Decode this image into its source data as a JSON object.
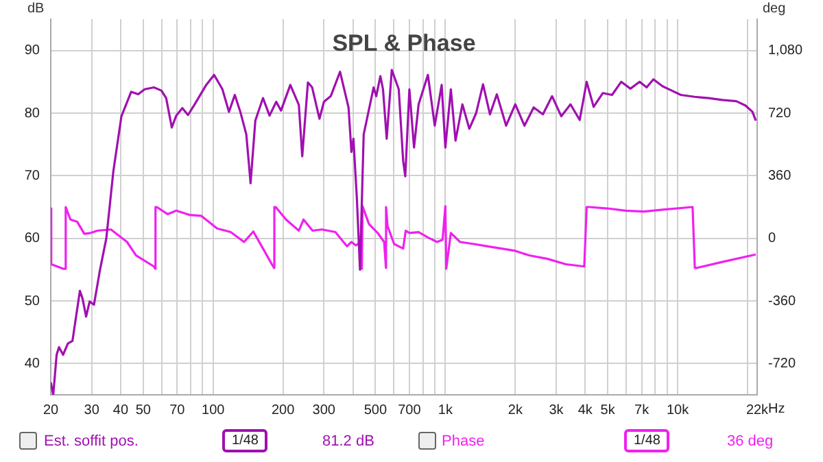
{
  "chart_data": {
    "type": "line",
    "title": "SPL & Phase",
    "ylabel": "dB",
    "y2label": "deg",
    "xlim": [
      20,
      22000
    ],
    "ylim": [
      35,
      95
    ],
    "y2lim": [
      -900,
      1260
    ],
    "log": "x",
    "grid": true,
    "legend": "bottom",
    "xticks": [
      20,
      30,
      40,
      50,
      {
        "value": 60,
        "label": null
      },
      70,
      {
        "value": 80,
        "label": null
      },
      {
        "value": 90,
        "label": null
      },
      100,
      200,
      300,
      {
        "value": 400,
        "label": null
      },
      500,
      {
        "value": 600,
        "label": null
      },
      700,
      {
        "value": 800,
        "label": null
      },
      {
        "value": 900,
        "label": null
      },
      {
        "value": 1000,
        "label": "1k"
      },
      {
        "value": 2000,
        "label": "2k"
      },
      {
        "value": 3000,
        "label": "3k"
      },
      {
        "value": 4000,
        "label": "4k"
      },
      {
        "value": 5000,
        "label": "5k"
      },
      {
        "value": 6000,
        "label": null
      },
      {
        "value": 7000,
        "label": "7k"
      },
      {
        "value": 8000,
        "label": null
      },
      {
        "value": 9000,
        "label": null
      },
      {
        "value": 10000,
        "label": "10k"
      },
      {
        "value": 20000,
        "label": null
      },
      {
        "value": 22000,
        "label": "22k"
      }
    ],
    "xlabel": "Hz",
    "yticks": [
      40,
      50,
      60,
      70,
      80,
      90
    ],
    "y2ticks": [
      {
        "value": -720,
        "label": "-720"
      },
      -360,
      0,
      360,
      720,
      {
        "value": 1080,
        "label": "1,080"
      }
    ],
    "annotations": [
      "1/48",
      "81.2 dB",
      "1/48",
      "36 deg"
    ],
    "series": [
      {
        "name": "Est. soffit pos.",
        "color": "#a010b0",
        "x": [
          20,
          20.5,
          21.2,
          21.7,
          22.6,
          23.7,
          24.8,
          25.8,
          26.7,
          27.4,
          28.4,
          29.4,
          30.7,
          32.6,
          34.7,
          37.2,
          40.3,
          44.4,
          47.6,
          50.7,
          55.6,
          59.9,
          62.8,
          66.4,
          69.4,
          73.7,
          78,
          83,
          93.4,
          101,
          109.7,
          117,
          124,
          131,
          139,
          145,
          152,
          164,
          175,
          187,
          196,
          215,
          234,
          242,
          256,
          267,
          287,
          300,
          321,
          352,
          383,
          394,
          402,
          416,
          429,
          445,
          469,
          491,
          504,
          525,
          539,
          559,
          588,
          630,
          658,
          672,
          700,
          733,
          767,
          841,
          900,
          964,
          1000,
          1056,
          1106,
          1184,
          1268,
          1357,
          1453,
          1556,
          1666,
          1826,
          2000,
          2191,
          2400,
          2630,
          2881,
          3156,
          3458,
          3788,
          4059,
          4348,
          4762,
          5218,
          5716,
          6262,
          6862,
          7355,
          7865,
          8605,
          9428,
          10330,
          11850,
          13600,
          15600,
          17900,
          19600,
          21000,
          21700
        ],
        "values": [
          37,
          35,
          41.4,
          42.6,
          41.4,
          43.2,
          43.6,
          47.9,
          51.6,
          50.4,
          47.5,
          49.9,
          49.4,
          55,
          60,
          70.7,
          79.5,
          83.4,
          83,
          83.8,
          84.1,
          83.6,
          82.4,
          77.7,
          79.6,
          80.8,
          79.7,
          81.3,
          84.5,
          86.1,
          83.8,
          80.2,
          82.9,
          80.2,
          76.6,
          68.8,
          78.8,
          82.4,
          79.6,
          81.8,
          80.4,
          84.5,
          81.3,
          73.1,
          84.9,
          84.1,
          79.1,
          81.8,
          82.7,
          86.6,
          80.9,
          73.8,
          75.9,
          66.3,
          55,
          76.6,
          80.6,
          84.1,
          82.7,
          85.9,
          83.8,
          75.9,
          86.9,
          83.8,
          72.4,
          69.9,
          83.8,
          74.5,
          81.4,
          86.1,
          78,
          84.5,
          74.5,
          83.8,
          75.6,
          81.4,
          77.5,
          80,
          84.6,
          79.8,
          83,
          78,
          81.4,
          78,
          80.9,
          79.8,
          82.7,
          79.5,
          81.4,
          78.9,
          85,
          81,
          83.2,
          82.9,
          85,
          83.9,
          85,
          84.1,
          85.4,
          84.3,
          83.6,
          82.9,
          82.6,
          82.4,
          82.1,
          81.9,
          81.2,
          80.2,
          78.8
        ]
      },
      {
        "name": "Phase",
        "color": "#f020f0",
        "axis": "y2",
        "x": [
          20,
          20.1,
          22.6,
          23.1,
          23.2,
          24.3,
          26,
          27.9,
          29.7,
          31.8,
          36.3,
          42.6,
          46.6,
          55.6,
          56.4,
          56.5,
          57.2,
          63.7,
          69.4,
          79.6,
          89,
          104,
          119,
          136,
          149,
          164,
          179,
          183,
          183.5,
          186,
          206,
          234,
          245,
          268,
          294,
          336,
          377,
          394,
          412,
          431,
          437,
          440,
          469,
          511,
          545,
          555,
          555.5,
          564,
          602,
          658,
          675,
          700,
          767,
          841,
          921,
          973,
          1000,
          1009,
          1056,
          1157,
          1327,
          1521,
          1744,
          2000,
          2292,
          2753,
          3301,
          3963,
          4058,
          4148,
          4982,
          5979,
          7175,
          8616,
          11600,
          11860,
          12130,
          15570,
          21700
        ],
        "values": [
          172,
          -149,
          -175,
          -175,
          180,
          108,
          95,
          26,
          31,
          44,
          51,
          -21,
          -98,
          -162,
          -175,
          180,
          180,
          139,
          159,
          134,
          129,
          57,
          36,
          -21,
          39,
          -59,
          -149,
          -170,
          180,
          180,
          108,
          44,
          108,
          44,
          51,
          36,
          -46,
          -21,
          -41,
          -21,
          -175,
          185,
          82,
          31,
          -21,
          -170,
          180,
          69,
          -33,
          -59,
          44,
          31,
          36,
          5,
          -21,
          -8,
          185,
          -175,
          31,
          -21,
          -33,
          -46,
          -59,
          -72,
          -98,
          -118,
          -149,
          -162,
          180,
          180,
          172,
          159,
          154,
          165,
          180,
          -170,
          -170,
          -136,
          -93
        ]
      }
    ]
  }
}
